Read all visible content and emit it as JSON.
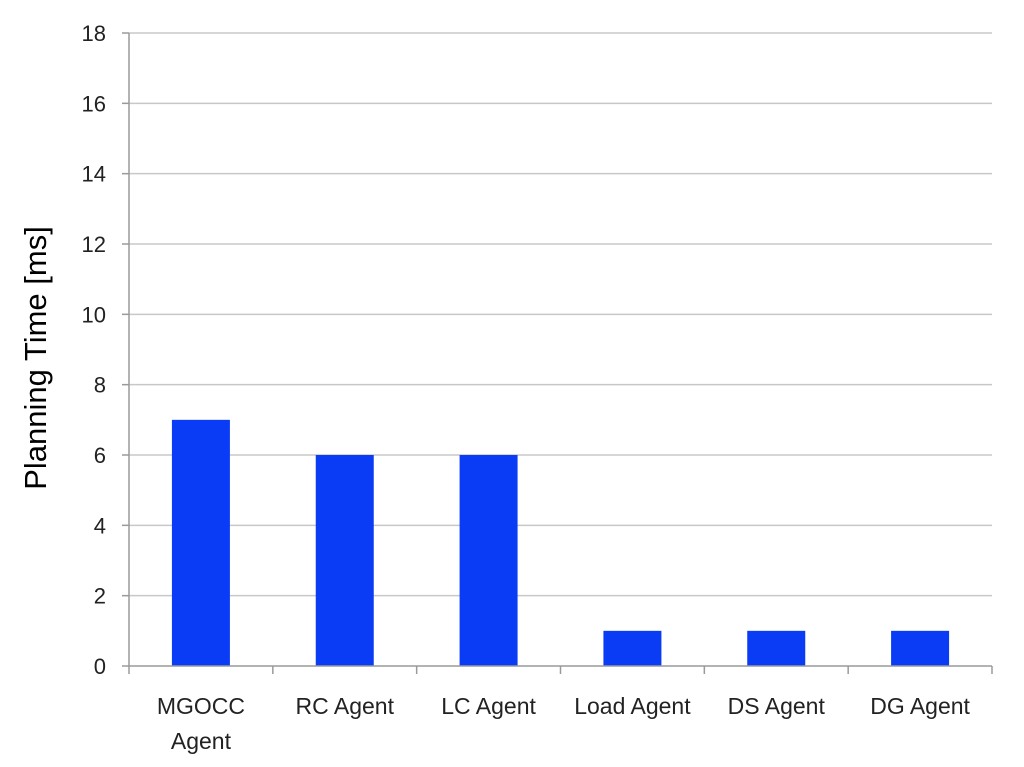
{
  "chart_data": {
    "type": "bar",
    "title": "",
    "xlabel": "",
    "ylabel": "Planning Time [ms]",
    "ylim": [
      0,
      18
    ],
    "ytick_step": 2,
    "grid": true,
    "legend": "none",
    "bar_color": "#0a3cf5",
    "categories": [
      [
        "MGOCC",
        "Agent"
      ],
      [
        "RC Agent"
      ],
      [
        "LC Agent"
      ],
      [
        "Load Agent"
      ],
      [
        "DS Agent"
      ],
      [
        "DG Agent"
      ]
    ],
    "values": [
      7,
      6,
      6,
      1,
      1,
      1
    ]
  }
}
